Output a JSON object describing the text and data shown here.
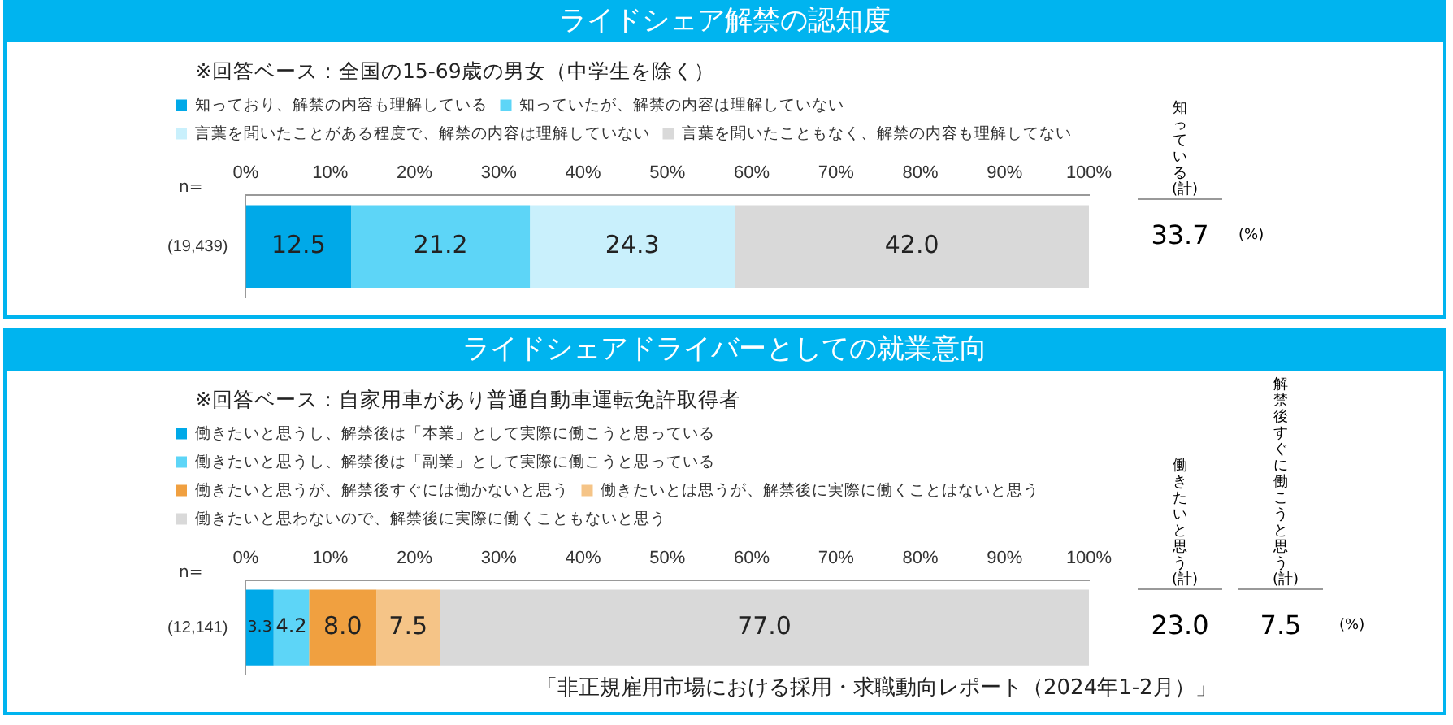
{
  "chart_data": [
    {
      "type": "bar",
      "orientation": "horizontal",
      "stacked": true,
      "title": "ライドシェア解禁の認知度",
      "subtitle": "※回答ベース：全国の15-69歳の男女（中学生を除く）",
      "ylabel": "n=",
      "categories": [
        "(19,439)"
      ],
      "series": [
        {
          "name": "知っており、解禁の内容も理解している",
          "color": "#00a9e8",
          "values": [
            12.5
          ],
          "value_labels": [
            "12.5"
          ]
        },
        {
          "name": "知っていたが、解禁の内容は理解していない",
          "color": "#5dd5f7",
          "values": [
            21.2
          ],
          "value_labels": [
            "21.2"
          ]
        },
        {
          "name": "言葉を聞いたことがある程度で、解禁の内容は理解していない",
          "color": "#c9f0fc",
          "values": [
            24.3
          ],
          "value_labels": [
            "24.3"
          ]
        },
        {
          "name": "言葉を聞いたこともなく、解禁の内容も理解してない",
          "color": "#d9d9d9",
          "values": [
            42.0
          ],
          "value_labels": [
            "42.0"
          ]
        }
      ],
      "xlim": [
        0,
        100
      ],
      "xticks": [
        {
          "value": 0,
          "label": "0%"
        },
        {
          "value": 10,
          "label": "10%"
        },
        {
          "value": 20,
          "label": "20%"
        },
        {
          "value": 30,
          "label": "30%"
        },
        {
          "value": 40,
          "label": "40%"
        },
        {
          "value": 50,
          "label": "50%"
        },
        {
          "value": 60,
          "label": "60%"
        },
        {
          "value": 70,
          "label": "70%"
        },
        {
          "value": 80,
          "label": "80%"
        },
        {
          "value": 90,
          "label": "90%"
        },
        {
          "value": 100,
          "label": "100%"
        }
      ],
      "grid": false,
      "legend": "top",
      "annotations": [
        "知っている(計)",
        "33.7",
        "(%)"
      ]
    },
    {
      "type": "bar",
      "orientation": "horizontal",
      "stacked": true,
      "title": "ライドシェアドライバーとしての就業意向",
      "subtitle": "※回答ベース：自家用車があり普通自動車運転免許取得者",
      "ylabel": "n=",
      "categories": [
        "(12,141)"
      ],
      "series": [
        {
          "name": "働きたいと思うし、解禁後は「本業」として実際に働こうと思っている",
          "color": "#00a9e8",
          "values": [
            3.3
          ],
          "value_labels": [
            "3.3"
          ]
        },
        {
          "name": "働きたいと思うし、解禁後は「副業」として実際に働こうと思っている",
          "color": "#5dd5f7",
          "values": [
            4.2
          ],
          "value_labels": [
            "4.2"
          ]
        },
        {
          "name": "働きたいと思うが、解禁後すぐには働かないと思う",
          "color": "#f0a040",
          "values": [
            8.0
          ],
          "value_labels": [
            "8.0"
          ]
        },
        {
          "name": "働きたいとは思うが、解禁後に実際に働くことはないと思う",
          "color": "#f5c487",
          "values": [
            7.5
          ],
          "value_labels": [
            "7.5"
          ]
        },
        {
          "name": "働きたいと思わないので、解禁後に実際に働くこともないと思う",
          "color": "#d9d9d9",
          "values": [
            77.0
          ],
          "value_labels": [
            "77.0"
          ]
        }
      ],
      "xlim": [
        0,
        100
      ],
      "xticks": [
        {
          "value": 0,
          "label": "0%"
        },
        {
          "value": 10,
          "label": "10%"
        },
        {
          "value": 20,
          "label": "20%"
        },
        {
          "value": 30,
          "label": "30%"
        },
        {
          "value": 40,
          "label": "40%"
        },
        {
          "value": 50,
          "label": "50%"
        },
        {
          "value": 60,
          "label": "60%"
        },
        {
          "value": 70,
          "label": "70%"
        },
        {
          "value": 80,
          "label": "80%"
        },
        {
          "value": 90,
          "label": "90%"
        },
        {
          "value": 100,
          "label": "100%"
        }
      ],
      "grid": false,
      "legend": "top",
      "annotations": [
        "働きたいと思う(計)",
        "23.0",
        "解禁後すぐに働こうと思う(計)",
        "7.5",
        "(%)",
        "「非正規雇用市場における採用・求職動向レポート（2024年1-2月）」"
      ]
    }
  ]
}
